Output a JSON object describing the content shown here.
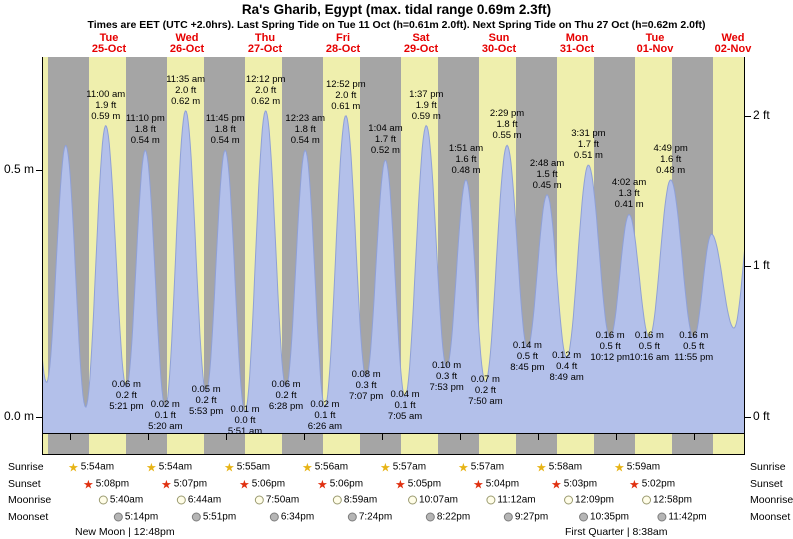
{
  "title": "Ra's Gharib, Egypt (max. tidal range 0.69m 2.3ft)",
  "subtitle": "Times are EET (UTC +2.0hrs). Last Spring Tide on Tue 11 Oct (h=0.61m 2.0ft). Next Spring Tide on Thu 27 Oct (h=0.62m 2.0ft)",
  "chart_data": {
    "type": "area",
    "title": "Ra's Gharib, Egypt (max. tidal range 0.69m 2.3ft)",
    "ylabel_left_unit": "m",
    "ylabel_right_unit": "ft",
    "days": [
      {
        "name": "Tue",
        "date": "25-Oct"
      },
      {
        "name": "Wed",
        "date": "26-Oct"
      },
      {
        "name": "Thu",
        "date": "27-Oct"
      },
      {
        "name": "Fri",
        "date": "28-Oct"
      },
      {
        "name": "Sat",
        "date": "29-Oct"
      },
      {
        "name": "Sun",
        "date": "30-Oct"
      },
      {
        "name": "Mon",
        "date": "31-Oct"
      },
      {
        "name": "Tue",
        "date": "01-Nov"
      },
      {
        "name": "Wed",
        "date": "02-Nov"
      }
    ],
    "y_axis": {
      "left": [
        {
          "label": "0.5 m",
          "m": 0.5
        },
        {
          "label": "0.0 m",
          "m": 0.0
        }
      ],
      "right": [
        {
          "label": "2 ft",
          "m": 0.6096
        },
        {
          "label": "1 ft",
          "m": 0.3048
        },
        {
          "label": "0 ft",
          "m": 0.0
        }
      ]
    },
    "tide_events": [
      {
        "type": "high",
        "t": 11.0,
        "height_m": 0.59,
        "lines": [
          "11:00 am",
          "1.9 ft",
          "0.59 m"
        ]
      },
      {
        "type": "low",
        "t": 17.35,
        "height_m": 0.06,
        "lines": [
          "0.06 m",
          "0.2 ft",
          "5:21 pm"
        ]
      },
      {
        "type": "high",
        "t": 23.167,
        "height_m": 0.54,
        "lines": [
          "11:10 pm",
          "1.8 ft",
          "0.54 m"
        ]
      },
      {
        "type": "low",
        "t": 29.333,
        "height_m": 0.02,
        "lines": [
          "0.02 m",
          "0.1 ft",
          "5:20 am"
        ]
      },
      {
        "type": "high",
        "t": 35.583,
        "height_m": 0.62,
        "lines": [
          "11:35 am",
          "2.0 ft",
          "0.62 m"
        ]
      },
      {
        "type": "low",
        "t": 41.883,
        "height_m": 0.05,
        "lines": [
          "0.05 m",
          "0.2 ft",
          "5:53 pm"
        ]
      },
      {
        "type": "high",
        "t": 47.75,
        "height_m": 0.54,
        "lines": [
          "11:45 pm",
          "1.8 ft",
          "0.54 m"
        ]
      },
      {
        "type": "low",
        "t": 53.85,
        "height_m": 0.01,
        "lines": [
          "0.01 m",
          "0.0 ft",
          "5:51 am"
        ]
      },
      {
        "type": "high",
        "t": 60.2,
        "height_m": 0.62,
        "lines": [
          "12:12 pm",
          "2.0 ft",
          "0.62 m"
        ]
      },
      {
        "type": "low",
        "t": 66.467,
        "height_m": 0.06,
        "lines": [
          "0.06 m",
          "0.2 ft",
          "6:28 pm"
        ]
      },
      {
        "type": "high",
        "t": 72.383,
        "height_m": 0.54,
        "lines": [
          "12:23 am",
          "1.8 ft",
          "0.54 m"
        ]
      },
      {
        "type": "low",
        "t": 78.433,
        "height_m": 0.02,
        "lines": [
          "0.02 m",
          "0.1 ft",
          "6:26 am"
        ]
      },
      {
        "type": "high",
        "t": 84.867,
        "height_m": 0.61,
        "lines": [
          "12:52 pm",
          "2.0 ft",
          "0.61 m"
        ]
      },
      {
        "type": "low",
        "t": 91.117,
        "height_m": 0.08,
        "lines": [
          "0.08 m",
          "0.3 ft",
          "7:07 pm"
        ]
      },
      {
        "type": "high",
        "t": 97.067,
        "height_m": 0.52,
        "lines": [
          "1:04 am",
          "1.7 ft",
          "0.52 m"
        ]
      },
      {
        "type": "low",
        "t": 103.083,
        "height_m": 0.04,
        "lines": [
          "0.04 m",
          "0.1 ft",
          "7:05 am"
        ]
      },
      {
        "type": "high",
        "t": 109.617,
        "height_m": 0.59,
        "lines": [
          "1:37 pm",
          "1.9 ft",
          "0.59 m"
        ]
      },
      {
        "type": "low",
        "t": 115.883,
        "height_m": 0.1,
        "lines": [
          "0.10 m",
          "0.3 ft",
          "7:53 pm"
        ]
      },
      {
        "type": "high",
        "t": 121.85,
        "height_m": 0.48,
        "lines": [
          "1:51 am",
          "1.6 ft",
          "0.48 m"
        ]
      },
      {
        "type": "low",
        "t": 127.833,
        "height_m": 0.07,
        "lines": [
          "0.07 m",
          "0.2 ft",
          "7:50 am"
        ]
      },
      {
        "type": "high",
        "t": 134.483,
        "height_m": 0.55,
        "lines": [
          "2:29 pm",
          "1.8 ft",
          "0.55 m"
        ]
      },
      {
        "type": "low",
        "t": 140.75,
        "height_m": 0.14,
        "lines": [
          "0.14 m",
          "0.5 ft",
          "8:45 pm"
        ]
      },
      {
        "type": "high",
        "t": 146.8,
        "height_m": 0.45,
        "lines": [
          "2:48 am",
          "1.5 ft",
          "0.45 m"
        ]
      },
      {
        "type": "low",
        "t": 152.817,
        "height_m": 0.12,
        "lines": [
          "0.12 m",
          "0.4 ft",
          "8:49 am"
        ]
      },
      {
        "type": "high",
        "t": 159.517,
        "height_m": 0.51,
        "lines": [
          "3:31 pm",
          "1.7 ft",
          "0.51 m"
        ]
      },
      {
        "type": "low",
        "t": 166.2,
        "height_m": 0.16,
        "lines": [
          "0.16 m",
          "0.5 ft",
          "10:12 pm"
        ]
      },
      {
        "type": "high",
        "t": 172.033,
        "height_m": 0.41,
        "lines": [
          "4:02 am",
          "1.3 ft",
          "0.41 m"
        ]
      },
      {
        "type": "low",
        "t": 178.267,
        "height_m": 0.16,
        "lines": [
          "0.16 m",
          "0.5 ft",
          "10:16 am"
        ]
      },
      {
        "type": "high",
        "t": 184.817,
        "height_m": 0.48,
        "lines": [
          "4:49 pm",
          "1.6 ft",
          "0.48 m"
        ]
      },
      {
        "type": "low",
        "t": 191.917,
        "height_m": 0.16,
        "lines": [
          "0.16 m",
          "0.5 ft",
          "11:55 pm"
        ]
      }
    ],
    "offscreen_context": [
      {
        "t": -13.8,
        "height_m": 0.58
      },
      {
        "t": -7.2,
        "height_m": 0.07
      },
      {
        "t": -1.3,
        "height_m": 0.55
      },
      {
        "t": 4.83,
        "height_m": 0.02
      },
      {
        "t": 197.4,
        "height_m": 0.37
      },
      {
        "t": 204.3,
        "height_m": 0.18
      },
      {
        "t": 210.6,
        "height_m": 0.48
      }
    ],
    "colors": {
      "day_band": "#efefad",
      "night_band": "#a5a5a5",
      "curve_fill": "#b3c0ea",
      "curve_stroke": "#8fa0d6",
      "day_label": "#e60000",
      "sunrise_star": "#e7b416",
      "sunset_star": "#e03010"
    }
  },
  "astro": {
    "rows": [
      {
        "label": "Sunrise",
        "icon": "sunrise-star",
        "times": [
          "5:54am",
          "5:54am",
          "5:55am",
          "5:56am",
          "5:57am",
          "5:57am",
          "5:58am",
          "5:59am"
        ]
      },
      {
        "label": "Sunset",
        "icon": "sunset-star",
        "times": [
          "5:08pm",
          "5:07pm",
          "5:06pm",
          "5:06pm",
          "5:05pm",
          "5:04pm",
          "5:03pm",
          "5:02pm"
        ]
      },
      {
        "label": "Moonrise",
        "icon": "moonrise-circle",
        "times": [
          "5:40am",
          "6:44am",
          "7:50am",
          "8:59am",
          "10:07am",
          "11:12am",
          "12:09pm",
          "12:58pm"
        ]
      },
      {
        "label": "Moonset",
        "icon": "moonset-circle",
        "times": [
          "5:14pm",
          "5:51pm",
          "6:34pm",
          "7:24pm",
          "8:22pm",
          "9:27pm",
          "10:35pm",
          "11:42pm"
        ]
      }
    ],
    "moon_phases": [
      {
        "text": "New Moon | 12:48pm"
      },
      {
        "text": "First Quarter | 8:38am"
      }
    ]
  }
}
